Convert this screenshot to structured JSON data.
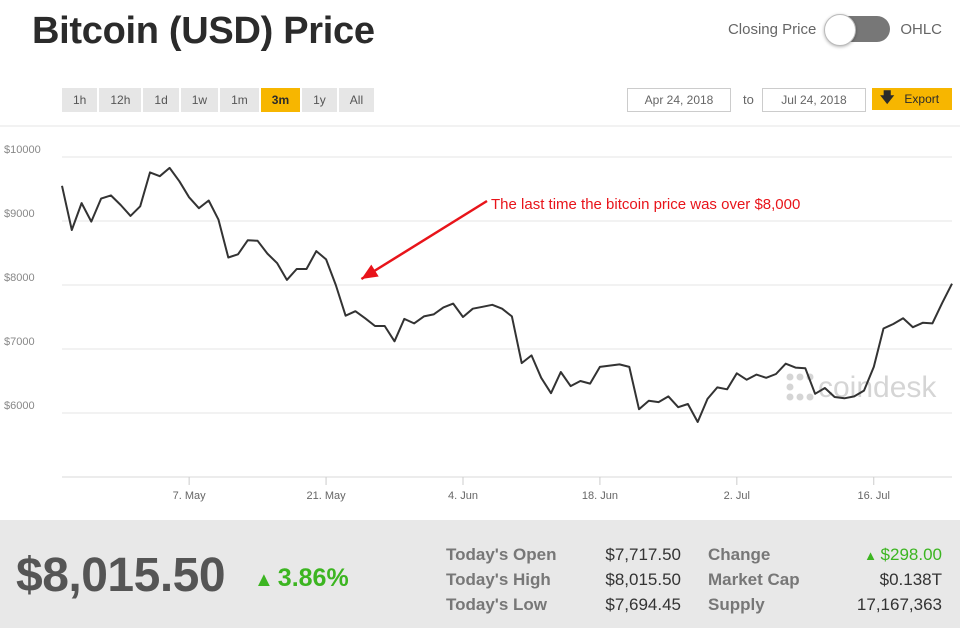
{
  "header": {
    "title": "Bitcoin (USD) Price",
    "toggle_left": "Closing Price",
    "toggle_right": "OHLC"
  },
  "ranges": [
    "1h",
    "12h",
    "1d",
    "1w",
    "1m",
    "3m",
    "1y",
    "All"
  ],
  "active_range": "3m",
  "date_range": {
    "from": "Apr 24, 2018",
    "to_label": "to",
    "to": "Jul 24, 2018"
  },
  "export_label": "Export",
  "watermark": "coindesk",
  "chart_data": {
    "type": "line",
    "title": "",
    "xlabel": "",
    "ylabel": "",
    "x_range": [
      "2018-04-24",
      "2018-07-24"
    ],
    "ylim": [
      5000,
      10500
    ],
    "yticks": [
      6000,
      7000,
      8000,
      9000,
      10000
    ],
    "ytick_labels": [
      "$6000",
      "$7000",
      "$8000",
      "$9000",
      "$10000"
    ],
    "xticks": [
      {
        "date": "2018-05-07",
        "label": "7. May"
      },
      {
        "date": "2018-05-21",
        "label": "21. May"
      },
      {
        "date": "2018-06-04",
        "label": "4. Jun"
      },
      {
        "date": "2018-06-18",
        "label": "18. Jun"
      },
      {
        "date": "2018-07-02",
        "label": "2. Jul"
      },
      {
        "date": "2018-07-16",
        "label": "16. Jul"
      }
    ],
    "grid": true,
    "annotation": {
      "text": "The last time the bitcoin price was over $8,000",
      "date": "2018-05-24",
      "value": 8000
    },
    "series": [
      {
        "color": "#333333",
        "points": [
          [
            "2018-04-24",
            9550
          ],
          [
            "2018-04-25",
            8860
          ],
          [
            "2018-04-26",
            9280
          ],
          [
            "2018-04-27",
            8990
          ],
          [
            "2018-04-28",
            9350
          ],
          [
            "2018-04-29",
            9400
          ],
          [
            "2018-04-30",
            9250
          ],
          [
            "2018-05-01",
            9080
          ],
          [
            "2018-05-02",
            9230
          ],
          [
            "2018-05-03",
            9760
          ],
          [
            "2018-05-04",
            9700
          ],
          [
            "2018-05-05",
            9830
          ],
          [
            "2018-05-06",
            9620
          ],
          [
            "2018-05-07",
            9370
          ],
          [
            "2018-05-08",
            9200
          ],
          [
            "2018-05-09",
            9320
          ],
          [
            "2018-05-10",
            9020
          ],
          [
            "2018-05-11",
            8430
          ],
          [
            "2018-05-12",
            8480
          ],
          [
            "2018-05-13",
            8700
          ],
          [
            "2018-05-14",
            8690
          ],
          [
            "2018-05-15",
            8490
          ],
          [
            "2018-05-16",
            8340
          ],
          [
            "2018-05-17",
            8080
          ],
          [
            "2018-05-18",
            8250
          ],
          [
            "2018-05-19",
            8250
          ],
          [
            "2018-05-20",
            8530
          ],
          [
            "2018-05-21",
            8400
          ],
          [
            "2018-05-22",
            8000
          ],
          [
            "2018-05-23",
            7520
          ],
          [
            "2018-05-24",
            7590
          ],
          [
            "2018-05-25",
            7480
          ],
          [
            "2018-05-26",
            7360
          ],
          [
            "2018-05-27",
            7360
          ],
          [
            "2018-05-28",
            7120
          ],
          [
            "2018-05-29",
            7470
          ],
          [
            "2018-05-30",
            7400
          ],
          [
            "2018-05-31",
            7510
          ],
          [
            "2018-06-01",
            7540
          ],
          [
            "2018-06-02",
            7650
          ],
          [
            "2018-06-03",
            7710
          ],
          [
            "2018-06-04",
            7500
          ],
          [
            "2018-06-05",
            7630
          ],
          [
            "2018-06-06",
            7660
          ],
          [
            "2018-06-07",
            7690
          ],
          [
            "2018-06-08",
            7630
          ],
          [
            "2018-06-09",
            7510
          ],
          [
            "2018-06-10",
            6780
          ],
          [
            "2018-06-11",
            6900
          ],
          [
            "2018-06-12",
            6550
          ],
          [
            "2018-06-13",
            6310
          ],
          [
            "2018-06-14",
            6640
          ],
          [
            "2018-06-15",
            6420
          ],
          [
            "2018-06-16",
            6500
          ],
          [
            "2018-06-17",
            6460
          ],
          [
            "2018-06-18",
            6720
          ],
          [
            "2018-06-19",
            6740
          ],
          [
            "2018-06-20",
            6760
          ],
          [
            "2018-06-21",
            6720
          ],
          [
            "2018-06-22",
            6060
          ],
          [
            "2018-06-23",
            6190
          ],
          [
            "2018-06-24",
            6170
          ],
          [
            "2018-06-25",
            6260
          ],
          [
            "2018-06-26",
            6090
          ],
          [
            "2018-06-27",
            6140
          ],
          [
            "2018-06-28",
            5860
          ],
          [
            "2018-06-29",
            6220
          ],
          [
            "2018-06-30",
            6400
          ],
          [
            "2018-07-01",
            6370
          ],
          [
            "2018-07-02",
            6620
          ],
          [
            "2018-07-03",
            6520
          ],
          [
            "2018-07-04",
            6600
          ],
          [
            "2018-07-05",
            6550
          ],
          [
            "2018-07-06",
            6610
          ],
          [
            "2018-07-07",
            6770
          ],
          [
            "2018-07-08",
            6710
          ],
          [
            "2018-07-09",
            6700
          ],
          [
            "2018-07-10",
            6300
          ],
          [
            "2018-07-11",
            6390
          ],
          [
            "2018-07-12",
            6250
          ],
          [
            "2018-07-13",
            6230
          ],
          [
            "2018-07-14",
            6260
          ],
          [
            "2018-07-15",
            6350
          ],
          [
            "2018-07-16",
            6720
          ],
          [
            "2018-07-17",
            7320
          ],
          [
            "2018-07-18",
            7390
          ],
          [
            "2018-07-19",
            7480
          ],
          [
            "2018-07-20",
            7340
          ],
          [
            "2018-07-21",
            7410
          ],
          [
            "2018-07-22",
            7400
          ],
          [
            "2018-07-23",
            7720
          ],
          [
            "2018-07-24",
            8020
          ]
        ]
      }
    ]
  },
  "footer": {
    "price": "$8,015.50",
    "change_pct": "3.86%",
    "up_color": "#3cb521",
    "stats_left": [
      {
        "label": "Today's Open",
        "value": "$7,717.50"
      },
      {
        "label": "Today's High",
        "value": "$8,015.50"
      },
      {
        "label": "Today's Low",
        "value": "$7,694.45"
      }
    ],
    "stats_right": [
      {
        "label": "Change",
        "value": "$298.00"
      },
      {
        "label": "Market Cap",
        "value": "$0.138T"
      },
      {
        "label": "Supply",
        "value": "17,167,363"
      }
    ]
  }
}
